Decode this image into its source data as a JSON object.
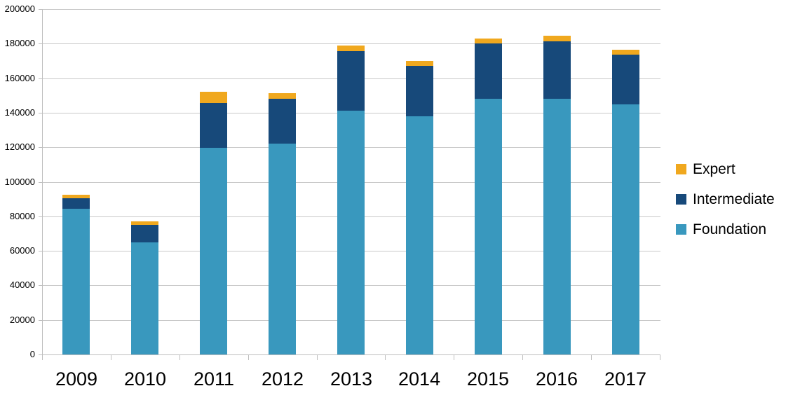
{
  "chart_data": {
    "type": "bar",
    "variant": "stacked-column",
    "title": "",
    "xlabel": "",
    "ylabel": "",
    "categories": [
      "2009",
      "2010",
      "2011",
      "2012",
      "2013",
      "2014",
      "2015",
      "2016",
      "2017"
    ],
    "series": [
      {
        "name": "Foundation",
        "color": "#3998BE",
        "values": [
          84500,
          65000,
          119500,
          122000,
          141000,
          138000,
          148000,
          148000,
          145000
        ]
      },
      {
        "name": "Intermediate",
        "color": "#17497A",
        "values": [
          6000,
          10000,
          26000,
          26000,
          34500,
          29000,
          32000,
          33500,
          28500
        ]
      },
      {
        "name": "Expert",
        "color": "#F0A81E",
        "values": [
          2000,
          2000,
          6500,
          3500,
          3500,
          3000,
          3000,
          3000,
          3000
        ]
      }
    ],
    "totals": [
      92500,
      77000,
      152000,
      151500,
      179000,
      170000,
      183000,
      184500,
      176500
    ],
    "ylim": [
      0,
      200000
    ],
    "ytick_step": 20000,
    "ytick_labels": [
      "0",
      "20000",
      "40000",
      "60000",
      "80000",
      "100000",
      "120000",
      "140000",
      "160000",
      "180000",
      "200000"
    ],
    "grid": "horizontal",
    "legend": {
      "position": "right",
      "entries": [
        {
          "label": "Expert",
          "color": "#F0A81E"
        },
        {
          "label": "Intermediate",
          "color": "#17497A"
        },
        {
          "label": "Foundation",
          "color": "#3998BE"
        }
      ]
    }
  },
  "colors": {
    "background": "#FFFFFF",
    "gridline": "#C9C9C9",
    "axis": "#BFBFBF",
    "text": "#000000"
  }
}
